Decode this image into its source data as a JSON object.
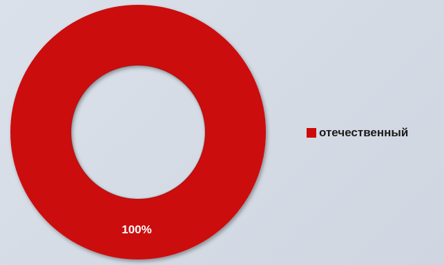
{
  "chart_data": {
    "type": "pie",
    "variant": "donut",
    "categories": [
      "отечественный"
    ],
    "values": [
      100
    ],
    "data_labels": [
      "100%"
    ],
    "colors": [
      "#cc0a0a"
    ],
    "label_color": "#ffffff",
    "legend_position": "right"
  }
}
